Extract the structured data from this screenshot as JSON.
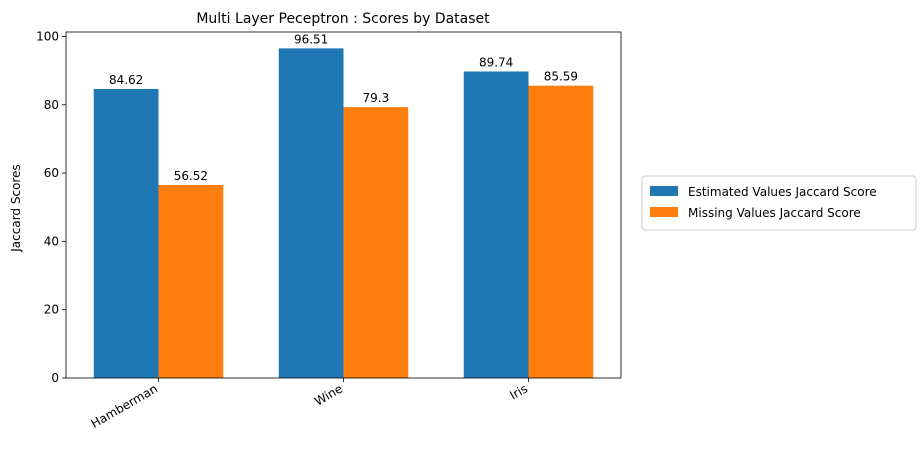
{
  "chart_data": {
    "type": "bar",
    "title": "Multi Layer Peceptron : Scores by Dataset",
    "xlabel": "",
    "ylabel": "Jaccard Scores",
    "categories": [
      "Hamberman",
      "Wine",
      "Iris"
    ],
    "series": [
      {
        "name": "Estimated Values Jaccard Score",
        "color": "#1f77b4",
        "values": [
          84.62,
          96.51,
          89.74
        ]
      },
      {
        "name": "Missing Values Jaccard Score",
        "color": "#ff7f0e",
        "values": [
          56.52,
          79.3,
          85.59
        ]
      }
    ],
    "data_labels": [
      [
        "84.62",
        "96.51",
        "89.74"
      ],
      [
        "56.52",
        "79.3",
        "85.59"
      ]
    ],
    "ylim": [
      0,
      101.3
    ],
    "yticks": [
      0,
      20,
      40,
      60,
      80,
      100
    ],
    "ytick_labels": [
      "0",
      "20",
      "40",
      "60",
      "80",
      "100"
    ],
    "grid": false,
    "legend_placement": "center-right-outside"
  }
}
